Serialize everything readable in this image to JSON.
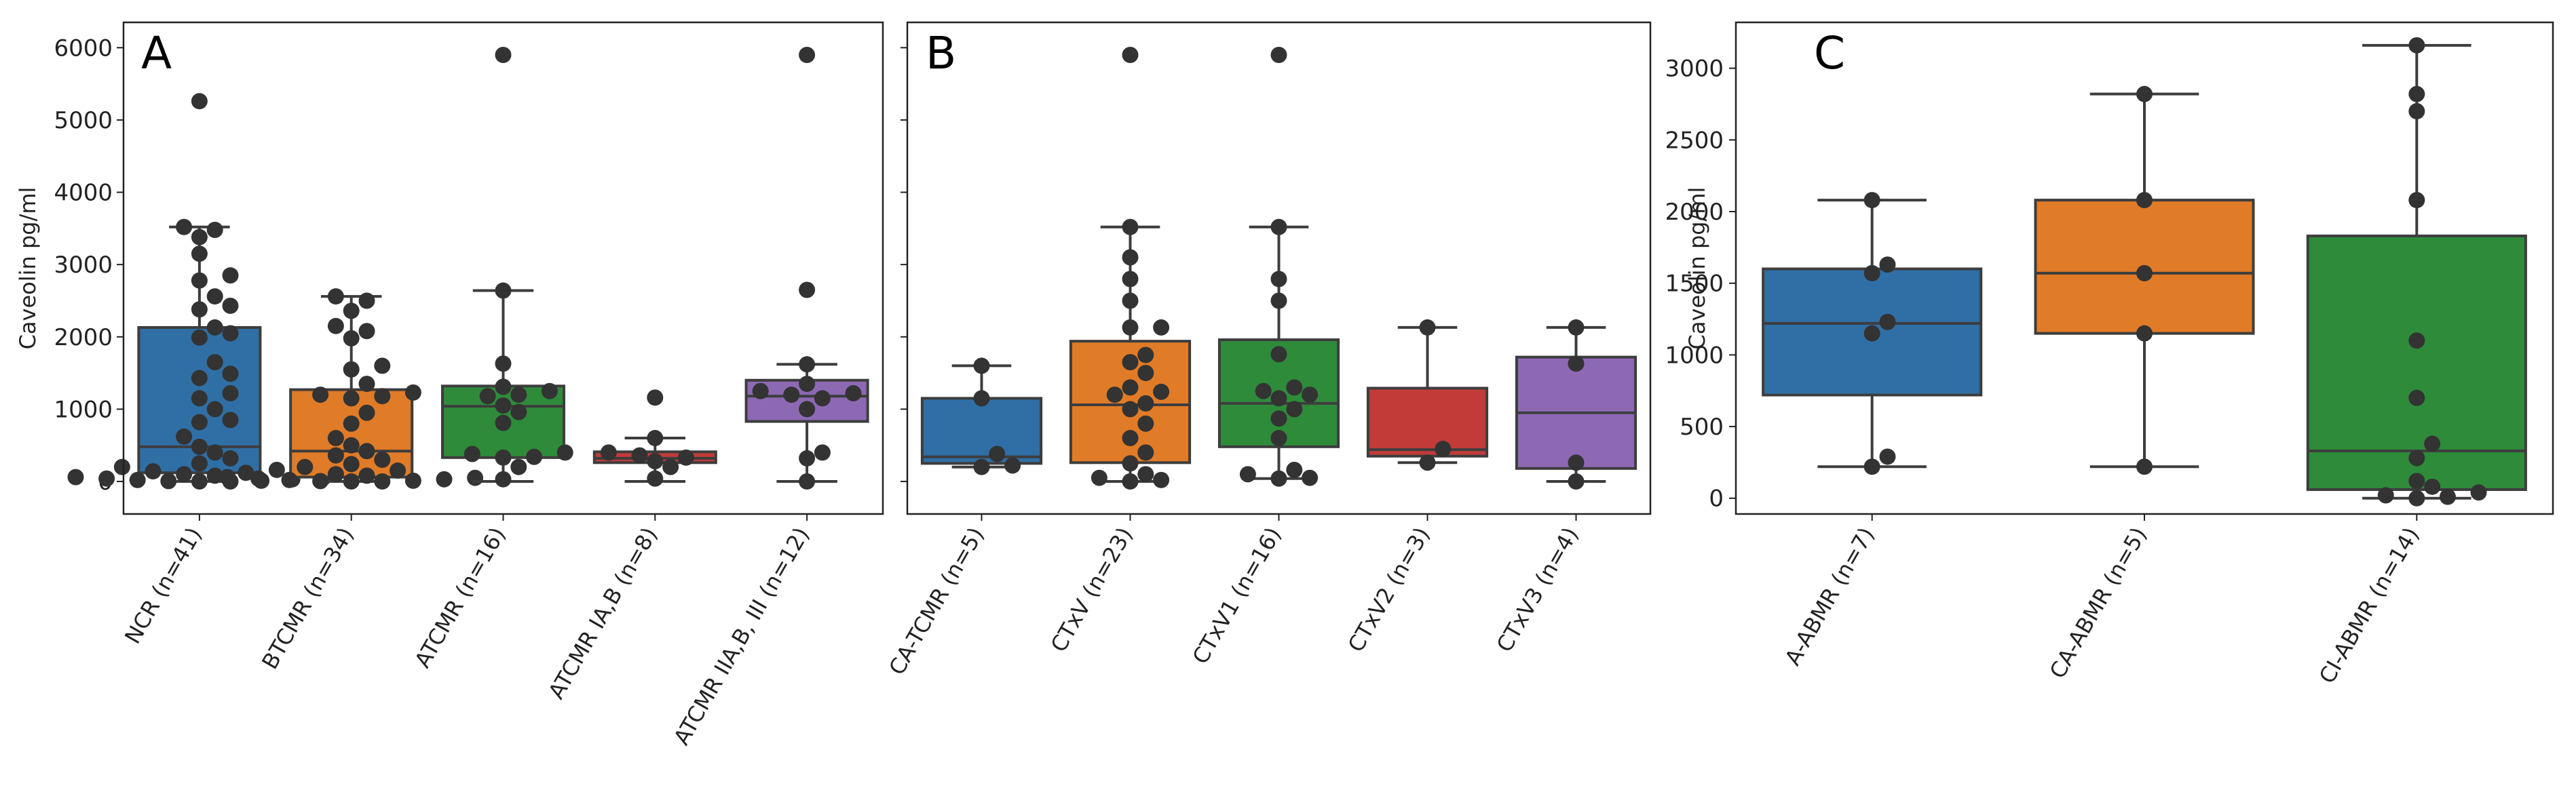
{
  "chart_data": [
    {
      "type": "box",
      "panel": "A",
      "ylabel": "Caveolin pg/ml",
      "ylim": [
        -450,
        6350
      ],
      "yticks": [
        0,
        1000,
        2000,
        3000,
        4000,
        5000,
        6000
      ],
      "show_ytick_labels": true,
      "categories": [
        "NCR (n=41)",
        "BTCMR (n=34)",
        "ATCMR (n=16)",
        "ATCMR IA,B (n=8)",
        "ATCMR IIA,B, III (n=12)"
      ],
      "boxes": [
        {
          "color": "#2f6fa5",
          "whislo": 0,
          "q1": 120,
          "median": 480,
          "q3": 2130,
          "whishi": 3520,
          "points": [
            5260,
            3520,
            3480,
            3380,
            3150,
            2850,
            2780,
            2560,
            2430,
            2380,
            2130,
            2050,
            1990,
            1650,
            1490,
            1430,
            1220,
            1150,
            1000,
            850,
            820,
            620,
            480,
            400,
            320,
            250,
            200,
            160,
            140,
            120,
            100,
            80,
            60,
            50,
            40,
            30,
            20,
            10,
            5,
            0,
            0
          ]
        },
        {
          "color": "#e07b27",
          "whislo": 0,
          "q1": 60,
          "median": 420,
          "q3": 1270,
          "whishi": 2560,
          "points": [
            2560,
            2500,
            2360,
            2150,
            2080,
            1980,
            1600,
            1550,
            1350,
            1230,
            1200,
            1180,
            1150,
            950,
            800,
            600,
            500,
            420,
            360,
            300,
            240,
            200,
            150,
            100,
            80,
            60,
            50,
            40,
            30,
            20,
            10,
            5,
            0,
            0
          ]
        },
        {
          "color": "#2e8b3a",
          "whislo": 0,
          "q1": 330,
          "median": 1040,
          "q3": 1320,
          "whishi": 2640,
          "points": [
            5900,
            2640,
            1630,
            1310,
            1250,
            1200,
            1180,
            1050,
            960,
            810,
            400,
            380,
            340,
            330,
            200,
            30
          ]
        },
        {
          "color": "#c23b38",
          "whislo": 0,
          "q1": 260,
          "median": 320,
          "q3": 410,
          "whishi": 600,
          "points": [
            1160,
            600,
            400,
            360,
            330,
            280,
            200,
            40
          ]
        },
        {
          "color": "#8d69b4",
          "whislo": 0,
          "q1": 830,
          "median": 1180,
          "q3": 1400,
          "whishi": 1620,
          "points": [
            5900,
            2650,
            1620,
            1350,
            1250,
            1220,
            1200,
            1150,
            1000,
            400,
            320,
            0
          ]
        }
      ]
    },
    {
      "type": "box",
      "panel": "B",
      "ylabel": "",
      "ylim": [
        -450,
        6350
      ],
      "yticks": [
        0,
        1000,
        2000,
        3000,
        4000,
        5000,
        6000
      ],
      "show_ytick_labels": false,
      "categories": [
        "CA-TCMR (n=5)",
        "CTxV (n=23)",
        "CTxV1 (n=16)",
        "CTxV2 (n=3)",
        "CTxV3 (n=4)"
      ],
      "boxes": [
        {
          "color": "#2f6fa5",
          "whislo": 200,
          "q1": 250,
          "median": 340,
          "q3": 1150,
          "whishi": 1600,
          "points": [
            1600,
            1150,
            380,
            220,
            200
          ]
        },
        {
          "color": "#e07b27",
          "whislo": 0,
          "q1": 260,
          "median": 1060,
          "q3": 1940,
          "whishi": 3520,
          "points": [
            5900,
            3520,
            3100,
            2800,
            2500,
            2130,
            2130,
            1750,
            1650,
            1500,
            1300,
            1240,
            1200,
            1080,
            1000,
            800,
            600,
            400,
            250,
            100,
            50,
            20,
            0
          ]
        },
        {
          "color": "#2e8b3a",
          "whislo": 40,
          "q1": 480,
          "median": 1080,
          "q3": 1960,
          "whishi": 3520,
          "points": [
            5900,
            3520,
            2800,
            2500,
            1760,
            1300,
            1250,
            1200,
            1150,
            1000,
            870,
            600,
            160,
            100,
            50,
            40
          ]
        },
        {
          "color": "#c23b38",
          "whislo": 260,
          "q1": 350,
          "median": 440,
          "q3": 1290,
          "whishi": 2130,
          "points": [
            2130,
            450,
            260
          ]
        },
        {
          "color": "#8d69b4",
          "whislo": 0,
          "q1": 180,
          "median": 950,
          "q3": 1720,
          "whishi": 2130,
          "points": [
            2130,
            1630,
            260,
            0
          ]
        }
      ]
    },
    {
      "type": "box",
      "panel": "C",
      "ylabel": "Caveolin pg/ml",
      "ylim": [
        -110,
        3320
      ],
      "yticks": [
        0,
        500,
        1000,
        1500,
        2000,
        2500,
        3000
      ],
      "show_ytick_labels": true,
      "categories": [
        "A-ABMR (n=7)",
        "CA-ABMR (n=5)",
        "CI-ABMR (n=14)"
      ],
      "boxes": [
        {
          "color": "#2f6fa5",
          "whislo": 220,
          "q1": 720,
          "median": 1220,
          "q3": 1600,
          "whishi": 2080,
          "points": [
            2080,
            1630,
            1570,
            1230,
            1150,
            290,
            220
          ]
        },
        {
          "color": "#e07b27",
          "whislo": 220,
          "q1": 1150,
          "median": 1570,
          "q3": 2080,
          "whishi": 2820,
          "points": [
            2820,
            2080,
            1570,
            1150,
            220
          ]
        },
        {
          "color": "#2e8b3a",
          "whislo": 0,
          "q1": 60,
          "median": 330,
          "q3": 1830,
          "whishi": 3160,
          "points": [
            3160,
            2820,
            2700,
            2080,
            1100,
            700,
            380,
            280,
            120,
            80,
            40,
            20,
            10,
            0
          ]
        }
      ]
    }
  ]
}
